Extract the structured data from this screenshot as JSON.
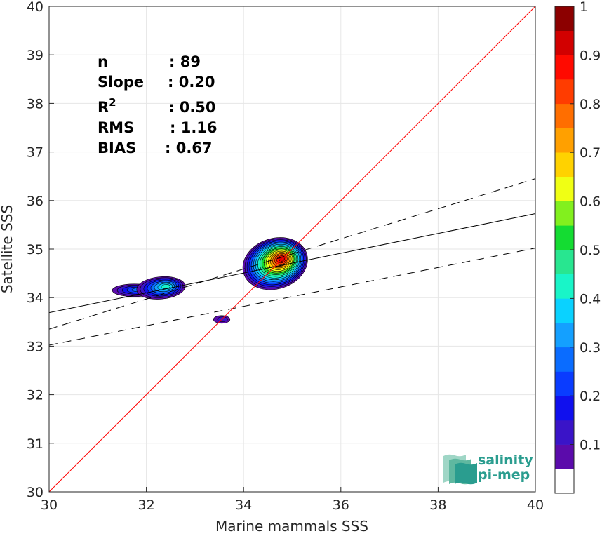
{
  "chart_data": {
    "type": "contour",
    "xlabel": "Marine mammals SSS",
    "ylabel": "Satellite SSS",
    "xlim": [
      30,
      40
    ],
    "ylim": [
      30,
      40
    ],
    "xticks": [
      30,
      32,
      34,
      36,
      38,
      40
    ],
    "yticks": [
      30,
      31,
      32,
      33,
      34,
      35,
      36,
      37,
      38,
      39,
      40
    ],
    "grid": true,
    "stats": [
      {
        "label": "n",
        "value": ": 89"
      },
      {
        "label": "Slope",
        "value": ": 0.20"
      },
      {
        "label": "R",
        "sup": "2",
        "value": ": 0.50"
      },
      {
        "label": "RMS",
        "value": ": 1.16"
      },
      {
        "label": "BIAS",
        "value": ": 0.67"
      }
    ],
    "identity_line": {
      "from": [
        30,
        30
      ],
      "to": [
        40,
        40
      ],
      "color": "#ff0000"
    },
    "regression_line": {
      "from": [
        30,
        33.69
      ],
      "to": [
        40,
        35.73
      ],
      "color": "#000000"
    },
    "regression_bounds": [
      {
        "from": [
          30,
          33.35
        ],
        "to": [
          40,
          36.45
        ]
      },
      {
        "from": [
          30,
          33.02
        ],
        "to": [
          40,
          35.02
        ]
      }
    ],
    "density_blobs": [
      {
        "cx": 34.65,
        "cy": 34.7,
        "rx": 0.68,
        "ry": 0.52,
        "angle": -18,
        "peak": 0.95
      },
      {
        "cx": 31.75,
        "cy": 34.15,
        "rx": 0.45,
        "ry": 0.13,
        "angle": 0,
        "peak": 0.25
      },
      {
        "cx": 32.3,
        "cy": 34.2,
        "rx": 0.5,
        "ry": 0.23,
        "angle": -5,
        "peak": 0.4
      },
      {
        "cx": 33.55,
        "cy": 33.55,
        "rx": 0.17,
        "ry": 0.08,
        "angle": 0,
        "peak": 0.12
      }
    ],
    "colorbar": {
      "min": 0,
      "max": 1,
      "ticks": [
        "0.1",
        "0.2",
        "0.3",
        "0.4",
        "0.5",
        "0.6",
        "0.7",
        "0.8",
        "0.9",
        "1"
      ],
      "colors": [
        "#ffffff",
        "#5b0bab",
        "#3a14c8",
        "#1010ee",
        "#0a3cff",
        "#0a6cff",
        "#14a0ff",
        "#0ad2ff",
        "#19f5c8",
        "#28e690",
        "#14dc32",
        "#82f01e",
        "#f0ff14",
        "#ffd200",
        "#ffa000",
        "#ff6e00",
        "#ff3c00",
        "#ff0a00",
        "#d20000",
        "#8c0000"
      ]
    },
    "logo": {
      "line1": "salinity",
      "line2": "pi-mep"
    }
  }
}
